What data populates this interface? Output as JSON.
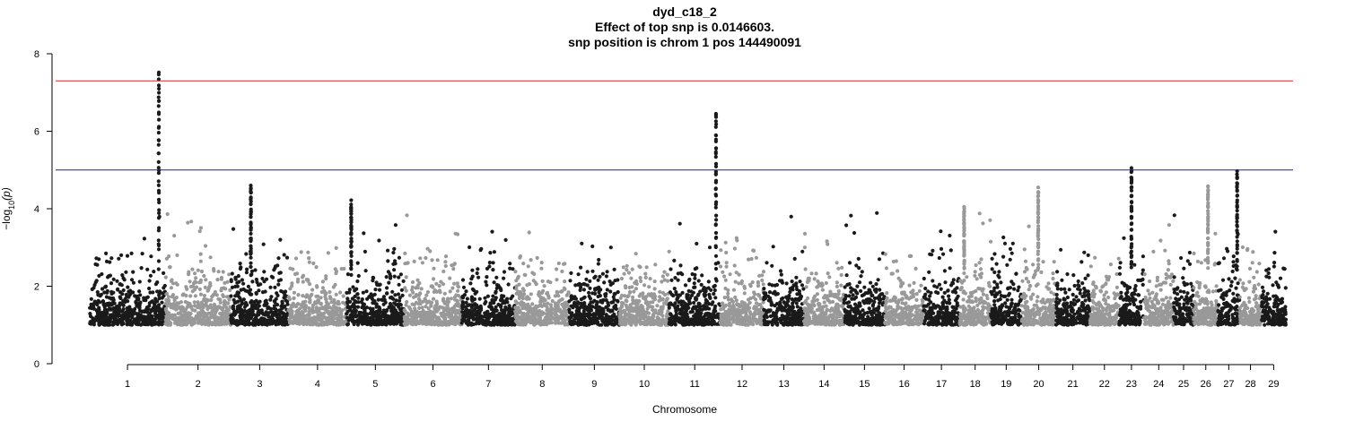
{
  "chart_data": {
    "type": "scatter",
    "title": "dyd_c18_2",
    "subtitle_lines": [
      "Effect of top snp is 0.0146603.",
      "snp position is chrom 1 pos 144490091"
    ],
    "xlabel": "Chromosome",
    "ylabel_main": "−log",
    "ylabel_sub": "10",
    "ylabel_tail": "(p)",
    "ylim": [
      0,
      8
    ],
    "yticks": [
      "0",
      "2",
      "4",
      "6",
      "8"
    ],
    "categories": [
      "1",
      "2",
      "3",
      "4",
      "5",
      "6",
      "7",
      "8",
      "9",
      "10",
      "11",
      "12",
      "13",
      "14",
      "15",
      "16",
      "17",
      "18",
      "19",
      "20",
      "21",
      "22",
      "23",
      "24",
      "25",
      "26",
      "27",
      "28",
      "29"
    ],
    "chromosome_sizes_mb": [
      158,
      137,
      121,
      121,
      121,
      120,
      112,
      113,
      105,
      104,
      107,
      91,
      84,
      84,
      85,
      81,
      75,
      66,
      64,
      72,
      71,
      61,
      52,
      62,
      42,
      51,
      45,
      46,
      51
    ],
    "colors": {
      "odd": "#1a1a1a",
      "even": "#999999",
      "sig_line": "#d62728",
      "sugg_line": "#1f1fa0"
    },
    "thresholds": {
      "genome_wide": 7.3,
      "suggestive": 5.0
    },
    "baseline_min": 1.0,
    "peaks": [
      {
        "chrom": "1",
        "pos_mb": 144.49,
        "max": 7.52
      },
      {
        "chrom": "11",
        "pos_mb": 98.0,
        "max": 6.45
      },
      {
        "chrom": "23",
        "pos_mb": 26.0,
        "max": 5.05
      },
      {
        "chrom": "26",
        "pos_mb": 30.0,
        "max": 4.58
      },
      {
        "chrom": "20",
        "pos_mb": 35.0,
        "max": 4.55
      },
      {
        "chrom": "3",
        "pos_mb": 42.0,
        "max": 4.6
      },
      {
        "chrom": "18",
        "pos_mb": 10.0,
        "max": 4.05
      },
      {
        "chrom": "5",
        "pos_mb": 10.0,
        "max": 4.22
      },
      {
        "chrom": "27",
        "pos_mb": 40.0,
        "max": 4.97
      }
    ]
  }
}
